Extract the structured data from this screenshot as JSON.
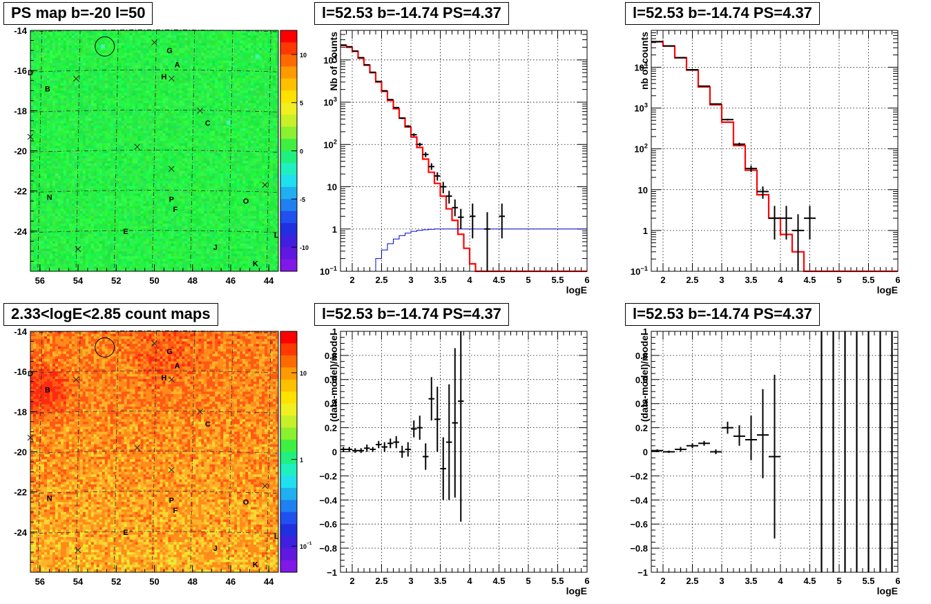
{
  "titles": {
    "ps_map": "PS map b=-20 l=50",
    "count_map": "2.33<logE<2.85 count maps",
    "spec_tl": "l=52.53 b=-14.74 PS=4.37",
    "spec_tr": "l=52.53 b=-14.74 PS=4.37",
    "res_bl": "l=52.53 b=-14.74 PS=4.37",
    "res_br": "l=52.53 b=-14.74 PS=4.37"
  },
  "chart_data": [
    {
      "id": "ps_map",
      "type": "heatmap",
      "title": "PS map b=-20 l=50",
      "x_ticks": [
        "56",
        "54",
        "52",
        "50",
        "48",
        "46",
        "44"
      ],
      "x_values": [
        56,
        54,
        52,
        50,
        48,
        46,
        44
      ],
      "y_ticks": [
        "-14",
        "-16",
        "-18",
        "-20",
        "-22",
        "-24"
      ],
      "y_values": [
        -14,
        -16,
        -18,
        -20,
        -22,
        -24
      ],
      "xlim": [
        56.5,
        43.5
      ],
      "ylim": [
        -26,
        -14
      ],
      "colorbar_ticks": [
        "10",
        "5",
        "0",
        "-5",
        "-10"
      ],
      "colorbar_values": [
        10,
        5,
        0,
        -5,
        -10
      ],
      "colorbar_range": [
        -12.5,
        12.5
      ],
      "base_color": "#22e842",
      "source_labels": [
        {
          "label": "G",
          "l": 49.2,
          "b": -15.0
        },
        {
          "label": "A",
          "l": 48.8,
          "b": -15.7
        },
        {
          "label": "H",
          "l": 49.5,
          "b": -16.3
        },
        {
          "label": "D",
          "l": 56.5,
          "b": -16.1
        },
        {
          "label": "B",
          "l": 55.6,
          "b": -16.9
        },
        {
          "label": "C",
          "l": 47.2,
          "b": -18.6
        },
        {
          "label": "N",
          "l": 55.5,
          "b": -22.3
        },
        {
          "label": "P",
          "l": 49.1,
          "b": -22.4
        },
        {
          "label": "F",
          "l": 48.9,
          "b": -22.9
        },
        {
          "label": "O",
          "l": 45.2,
          "b": -22.5
        },
        {
          "label": "E",
          "l": 51.5,
          "b": -24.0
        },
        {
          "label": "J",
          "l": 46.8,
          "b": -24.8
        },
        {
          "label": "K",
          "l": 44.7,
          "b": -25.6
        },
        {
          "label": "L",
          "l": 43.6,
          "b": -24.2
        }
      ],
      "crosses": [
        {
          "l": 50.0,
          "b": -14.6
        },
        {
          "l": 54.1,
          "b": -16.4
        },
        {
          "l": 49.1,
          "b": -16.4
        },
        {
          "l": 47.6,
          "b": -18.0
        },
        {
          "l": 56.5,
          "b": -19.3
        },
        {
          "l": 50.9,
          "b": -19.8
        },
        {
          "l": 49.1,
          "b": -20.9
        },
        {
          "l": 44.2,
          "b": -21.7
        },
        {
          "l": 54.0,
          "b": -24.9
        }
      ],
      "circle": {
        "l": 52.6,
        "b": -14.8,
        "r": 0.5
      }
    },
    {
      "id": "count_map",
      "type": "heatmap",
      "title": "2.33<logE<2.85 count maps",
      "x_ticks": [
        "56",
        "54",
        "52",
        "50",
        "48",
        "46",
        "44"
      ],
      "x_values": [
        56,
        54,
        52,
        50,
        48,
        46,
        44
      ],
      "y_ticks": [
        "-14",
        "-16",
        "-18",
        "-20",
        "-22",
        "-24"
      ],
      "y_values": [
        -14,
        -16,
        -18,
        -20,
        -22,
        -24
      ],
      "xlim": [
        56.5,
        43.5
      ],
      "ylim": [
        -26,
        -14
      ],
      "colorbar_ticks": [
        "10",
        "1",
        "10^-1"
      ],
      "colorbar_values": [
        10,
        1,
        0.1
      ],
      "colorbar_log": true,
      "colorbar_range": [
        0.05,
        30
      ],
      "source_labels": [
        {
          "label": "G",
          "l": 49.2,
          "b": -15.0
        },
        {
          "label": "A",
          "l": 48.8,
          "b": -15.7
        },
        {
          "label": "H",
          "l": 49.5,
          "b": -16.3
        },
        {
          "label": "D",
          "l": 56.5,
          "b": -16.1
        },
        {
          "label": "B",
          "l": 55.6,
          "b": -16.9
        },
        {
          "label": "C",
          "l": 47.2,
          "b": -18.6
        },
        {
          "label": "N",
          "l": 55.5,
          "b": -22.3
        },
        {
          "label": "P",
          "l": 49.1,
          "b": -22.4
        },
        {
          "label": "F",
          "l": 48.9,
          "b": -22.9
        },
        {
          "label": "O",
          "l": 45.2,
          "b": -22.5
        },
        {
          "label": "E",
          "l": 51.5,
          "b": -24.0
        },
        {
          "label": "J",
          "l": 46.8,
          "b": -24.8
        },
        {
          "label": "K",
          "l": 44.7,
          "b": -25.6
        },
        {
          "label": "L",
          "l": 43.6,
          "b": -24.2
        }
      ],
      "crosses": [
        {
          "l": 50.0,
          "b": -14.6
        },
        {
          "l": 54.1,
          "b": -16.4
        },
        {
          "l": 49.1,
          "b": -16.4
        },
        {
          "l": 47.6,
          "b": -18.0
        },
        {
          "l": 56.5,
          "b": -19.3
        },
        {
          "l": 50.9,
          "b": -19.8
        },
        {
          "l": 49.1,
          "b": -20.9
        },
        {
          "l": 44.2,
          "b": -21.7
        },
        {
          "l": 54.0,
          "b": -24.9
        }
      ],
      "circle": {
        "l": 52.6,
        "b": -14.8,
        "r": 0.5
      }
    },
    {
      "id": "spec_tl",
      "type": "line",
      "title": "l=52.53 b=-14.74 PS=4.37",
      "xlabel": "logE",
      "ylabel": "Nb of counts",
      "xlim": [
        1.8,
        6
      ],
      "ylim": [
        0.1,
        50000
      ],
      "y_log": true,
      "x_ticks": [
        2,
        2.5,
        3,
        3.5,
        4,
        4.5,
        5,
        5.5,
        6
      ],
      "x_tick_labels": [
        "2",
        "2.5",
        "3",
        "3.5",
        "4",
        "4.5",
        "5",
        "5.5",
        "6"
      ],
      "y_ticks": [
        0.1,
        1,
        10,
        100,
        1000,
        10000
      ],
      "y_tick_labels": [
        "10^-1",
        "1",
        "10",
        "10^2",
        "10^3",
        "10^4"
      ],
      "series": [
        {
          "kind": "step",
          "color": "#ff0000",
          "width": 2.2,
          "edges": [
            1.8,
            1.9,
            2.0,
            2.1,
            2.2,
            2.3,
            2.4,
            2.5,
            2.6,
            2.7,
            2.8,
            2.9,
            3.0,
            3.1,
            3.2,
            3.3,
            3.4,
            3.5,
            3.6,
            3.7,
            3.8,
            3.9,
            4.0,
            4.1,
            4.2,
            4.3,
            4.4,
            6.0
          ],
          "values": [
            22000,
            20000,
            16000,
            11000,
            7500,
            5000,
            3000,
            1800,
            1100,
            700,
            420,
            260,
            150,
            85,
            45,
            22,
            12,
            6,
            3,
            1.6,
            0.75,
            0.35,
            0.15,
            0.1,
            0.1,
            0.1,
            0.1
          ]
        },
        {
          "kind": "step",
          "color": "#0000cc",
          "width": 1,
          "edges": [
            2.35,
            2.4,
            2.5,
            2.6,
            2.7,
            2.8,
            2.9,
            3.0,
            3.1,
            3.2,
            3.3,
            3.4,
            6.0
          ],
          "values": [
            0.1,
            0.2,
            0.32,
            0.45,
            0.58,
            0.7,
            0.8,
            0.88,
            0.93,
            0.96,
            0.98,
            1.0
          ]
        },
        {
          "kind": "points",
          "color": "#000000",
          "x": [
            1.85,
            1.95,
            2.05,
            2.15,
            2.25,
            2.35,
            2.45,
            2.55,
            2.65,
            2.75,
            2.85,
            2.95,
            3.05,
            3.15,
            3.25,
            3.35,
            3.45,
            3.55,
            3.65,
            3.75,
            3.85,
            4.05,
            4.3,
            4.55
          ],
          "y": [
            22500,
            20500,
            16200,
            11300,
            7650,
            5100,
            3100,
            1860,
            1150,
            745,
            420,
            270,
            170,
            100,
            58,
            30,
            18,
            10,
            6,
            3.2,
            1.9,
            2,
            1,
            2
          ],
          "xerr": [
            0.05,
            0.05,
            0.05,
            0.05,
            0.05,
            0.05,
            0.05,
            0.05,
            0.05,
            0.05,
            0.05,
            0.05,
            0.05,
            0.05,
            0.05,
            0.05,
            0.05,
            0.05,
            0.05,
            0.05,
            0.05,
            0.05,
            0.05,
            0.05
          ],
          "ylo": [
            22350,
            20350,
            16070,
            11190,
            7560,
            5030,
            3045,
            1817,
            1116,
            718,
            400,
            254,
            157,
            90,
            50,
            25,
            14,
            7,
            4,
            2,
            1,
            0.6,
            0,
            0.6
          ],
          "yhi": [
            22650,
            20650,
            16330,
            11410,
            7740,
            5170,
            3155,
            1903,
            1184,
            772,
            440,
            286,
            183,
            110,
            66,
            36,
            22,
            13,
            8,
            5,
            3,
            4,
            2.5,
            4
          ]
        }
      ]
    },
    {
      "id": "spec_tr",
      "type": "line",
      "title": "l=52.53 b=-14.74 PS=4.37",
      "xlabel": "logE",
      "ylabel": "nb of counts",
      "xlim": [
        1.8,
        6
      ],
      "ylim": [
        0.1,
        80000
      ],
      "y_log": true,
      "x_ticks": [
        2,
        2.5,
        3,
        3.5,
        4,
        4.5,
        5,
        5.5,
        6
      ],
      "x_tick_labels": [
        "2",
        "2.5",
        "3",
        "3.5",
        "4",
        "4.5",
        "5",
        "5.5",
        "6"
      ],
      "y_ticks": [
        0.1,
        1,
        10,
        100,
        1000,
        10000
      ],
      "y_tick_labels": [
        "10^-1",
        "1",
        "10",
        "10^2",
        "10^3",
        "10^4"
      ],
      "series": [
        {
          "kind": "step",
          "color": "#ff0000",
          "width": 2.2,
          "edges": [
            1.8,
            2.0,
            2.2,
            2.4,
            2.6,
            2.8,
            3.0,
            3.2,
            3.4,
            3.6,
            3.8,
            4.0,
            4.2,
            4.4,
            6.0
          ],
          "values": [
            42000,
            33000,
            17000,
            8500,
            3300,
            1200,
            450,
            120,
            30,
            7.5,
            2,
            0.8,
            0.3,
            0.1
          ]
        },
        {
          "kind": "points",
          "color": "#000000",
          "x": [
            1.9,
            2.1,
            2.3,
            2.5,
            2.7,
            2.9,
            3.1,
            3.3,
            3.5,
            3.7,
            3.9,
            4.1,
            4.3,
            4.5
          ],
          "y": [
            42400,
            33300,
            17200,
            8700,
            3450,
            1260,
            520,
            130,
            33,
            9,
            2,
            2,
            1,
            2
          ],
          "xerr": [
            0.1,
            0.1,
            0.1,
            0.1,
            0.1,
            0.1,
            0.1,
            0.1,
            0.1,
            0.1,
            0.1,
            0.1,
            0.1,
            0.1
          ],
          "ylo": [
            42200,
            33100,
            17050,
            8600,
            3380,
            1220,
            495,
            118,
            27,
            6,
            0.6,
            0.6,
            0,
            0.6
          ],
          "yhi": [
            42600,
            33500,
            17350,
            8800,
            3520,
            1300,
            545,
            142,
            39,
            12,
            4,
            4,
            2.5,
            4
          ]
        }
      ]
    },
    {
      "id": "res_bl",
      "type": "scatter",
      "title": "l=52.53 b=-14.74 PS=4.37",
      "xlabel": "logE",
      "ylabel": "(data-model)/model",
      "xlim": [
        1.8,
        6
      ],
      "ylim": [
        -1,
        1
      ],
      "x_ticks": [
        2,
        2.5,
        3,
        3.5,
        4,
        4.5,
        5,
        5.5,
        6
      ],
      "x_tick_labels": [
        "2",
        "2.5",
        "3",
        "3.5",
        "4",
        "4.5",
        "5",
        "5.5",
        "6"
      ],
      "y_ticks": [
        -1,
        -0.8,
        -0.6,
        -0.4,
        -0.2,
        0,
        0.2,
        0.4,
        0.6,
        0.8,
        1
      ],
      "y_tick_labels": [
        "−1",
        "−0.8",
        "−0.6",
        "−0.4",
        "−0.2",
        "0",
        "0.2",
        "0.4",
        "0.6",
        "0.8",
        "1"
      ],
      "series": [
        {
          "kind": "points",
          "color": "#000000",
          "x": [
            1.85,
            1.95,
            2.05,
            2.15,
            2.25,
            2.35,
            2.45,
            2.55,
            2.65,
            2.75,
            2.85,
            2.95,
            3.05,
            3.15,
            3.25,
            3.35,
            3.45,
            3.55,
            3.65,
            3.75,
            3.85
          ],
          "y": [
            0.02,
            0.02,
            0.01,
            0.01,
            0.03,
            0.02,
            0.06,
            0.04,
            0.07,
            0.08,
            0.0,
            0.02,
            0.19,
            0.2,
            -0.04,
            0.44,
            0.27,
            -0.14,
            0.08,
            0.24,
            0.42
          ],
          "xerr": [
            0.05,
            0.05,
            0.05,
            0.05,
            0.05,
            0.05,
            0.05,
            0.05,
            0.05,
            0.05,
            0.05,
            0.05,
            0.05,
            0.05,
            0.05,
            0.05,
            0.05,
            0.05,
            0.05,
            0.05,
            0.05
          ],
          "ylo": [
            0.0,
            0.0,
            -0.01,
            -0.01,
            0.0,
            0.0,
            0.03,
            0.0,
            0.03,
            0.03,
            -0.05,
            -0.04,
            0.12,
            0.1,
            -0.15,
            0.26,
            0.0,
            -0.4,
            -0.4,
            -0.38,
            -0.58
          ],
          "yhi": [
            0.04,
            0.04,
            0.03,
            0.03,
            0.06,
            0.04,
            0.09,
            0.08,
            0.11,
            0.13,
            0.05,
            0.08,
            0.26,
            0.3,
            0.07,
            0.62,
            0.54,
            0.12,
            0.56,
            0.86,
            1.0
          ]
        }
      ]
    },
    {
      "id": "res_br",
      "type": "scatter",
      "title": "l=52.53 b=-14.74 PS=4.37",
      "xlabel": "logE",
      "ylabel": "(data-model)/model",
      "xlim": [
        1.8,
        6
      ],
      "ylim": [
        -1,
        1
      ],
      "x_ticks": [
        2,
        2.5,
        3,
        3.5,
        4,
        4.5,
        5,
        5.5,
        6
      ],
      "x_tick_labels": [
        "2",
        "2.5",
        "3",
        "3.5",
        "4",
        "4.5",
        "5",
        "5.5",
        "6"
      ],
      "y_ticks": [
        -1,
        -0.8,
        -0.6,
        -0.4,
        -0.2,
        0,
        0.2,
        0.4,
        0.6,
        0.8,
        1
      ],
      "y_tick_labels": [
        "−1",
        "−0.8",
        "−0.6",
        "−0.4",
        "−0.2",
        "0",
        "0.2",
        "0.4",
        "0.6",
        "0.8",
        "1"
      ],
      "series": [
        {
          "kind": "points",
          "color": "#000000",
          "x": [
            1.9,
            2.1,
            2.3,
            2.5,
            2.7,
            2.9,
            3.1,
            3.3,
            3.5,
            3.7,
            3.9
          ],
          "y": [
            0.01,
            0.0,
            0.02,
            0.05,
            0.07,
            0.0,
            0.2,
            0.13,
            0.1,
            0.14,
            -0.04
          ],
          "xerr": [
            0.1,
            0.1,
            0.1,
            0.1,
            0.1,
            0.1,
            0.1,
            0.1,
            0.1,
            0.1,
            0.1
          ],
          "ylo": [
            0.0,
            -0.01,
            0.0,
            0.03,
            0.05,
            -0.02,
            0.15,
            0.05,
            -0.07,
            -0.22,
            -0.72
          ],
          "yhi": [
            0.02,
            0.01,
            0.04,
            0.07,
            0.09,
            0.02,
            0.25,
            0.22,
            0.3,
            0.52,
            0.64
          ]
        },
        {
          "kind": "vlines",
          "color": "#000000",
          "x": [
            4.7,
            4.9,
            5.1,
            5.3,
            5.5,
            5.7,
            5.9
          ]
        }
      ]
    }
  ]
}
